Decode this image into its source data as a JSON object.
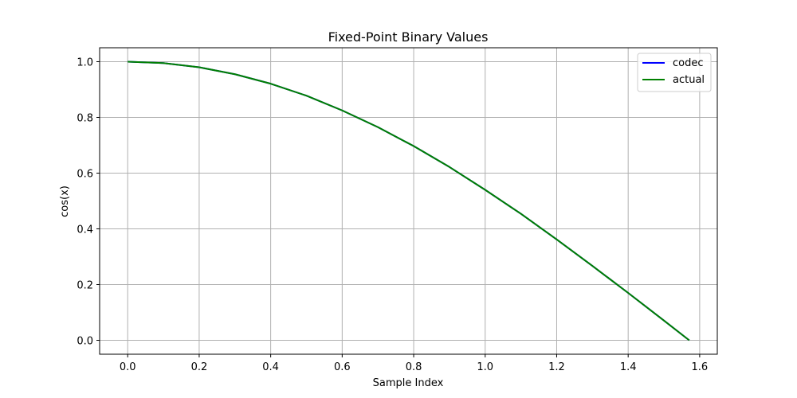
{
  "chart_data": {
    "type": "line",
    "title": "Fixed-Point Binary Values",
    "xlabel": "Sample Index",
    "ylabel": "cos(x)",
    "xlim": [
      -0.0785,
      1.6493
    ],
    "ylim": [
      -0.05,
      1.05
    ],
    "xticks": [
      0.0,
      0.2,
      0.4,
      0.6,
      0.8,
      1.0,
      1.2,
      1.4,
      1.6
    ],
    "yticks": [
      0.0,
      0.2,
      0.4,
      0.6,
      0.8,
      1.0
    ],
    "xtick_labels": [
      "0.0",
      "0.2",
      "0.4",
      "0.6",
      "0.8",
      "1.0",
      "1.2",
      "1.4",
      "1.6"
    ],
    "ytick_labels": [
      "0.0",
      "0.2",
      "0.4",
      "0.6",
      "0.8",
      "1.0"
    ],
    "grid": true,
    "legend_position": "top-right",
    "x": [
      0.0,
      0.1,
      0.2,
      0.3,
      0.4,
      0.5,
      0.6,
      0.7,
      0.8,
      0.9,
      1.0,
      1.1,
      1.2,
      1.3,
      1.4,
      1.5,
      1.5708
    ],
    "series": [
      {
        "name": "codec",
        "color": "#0000ff",
        "values": [
          1.0,
          0.995,
          0.98,
          0.955,
          0.921,
          0.878,
          0.825,
          0.765,
          0.697,
          0.622,
          0.54,
          0.454,
          0.362,
          0.267,
          0.17,
          0.071,
          0.0
        ]
      },
      {
        "name": "actual",
        "color": "#008000",
        "values": [
          1.0,
          0.995,
          0.98,
          0.955,
          0.921,
          0.878,
          0.825,
          0.765,
          0.697,
          0.622,
          0.54,
          0.454,
          0.362,
          0.267,
          0.17,
          0.071,
          0.0
        ]
      }
    ]
  }
}
